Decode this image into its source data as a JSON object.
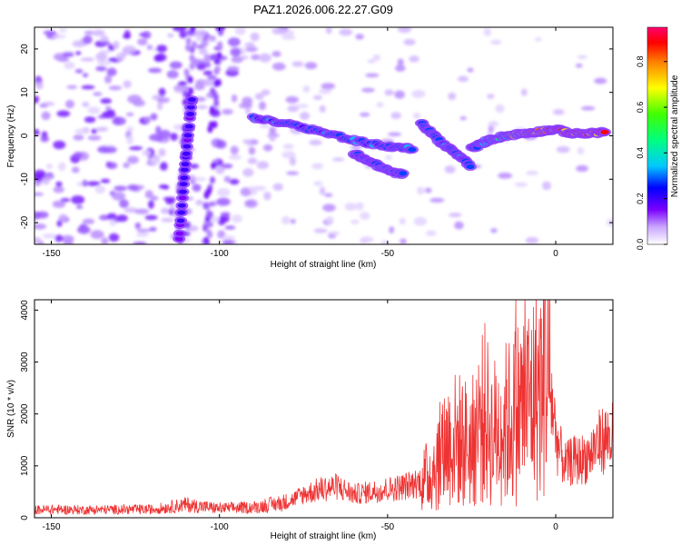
{
  "title": "PAZ1.2026.006.22.27.G09",
  "chart_data": [
    {
      "type": "heatmap",
      "xlabel": "Height of straight line (km)",
      "ylabel": "Frequency (Hz)",
      "xlim": [
        -155,
        17
      ],
      "ylim": [
        -25,
        25
      ],
      "x_ticks": [
        -150,
        -100,
        -50,
        0
      ],
      "x_tick_labels": [
        "-150",
        "-100",
        "-50",
        "0"
      ],
      "y_ticks": [
        -20,
        -10,
        0,
        10,
        20
      ],
      "y_tick_labels": [
        "-20",
        "-10",
        "0",
        "10",
        "20"
      ],
      "colorbar": {
        "label": "Normalized spectral amplitude",
        "range": [
          0,
          0.95
        ],
        "ticks": [
          0.0,
          0.2,
          0.4,
          0.6,
          0.8
        ],
        "tick_labels": [
          "0.0",
          "0.2",
          "0.4",
          "0.6",
          "0.8"
        ],
        "colormap": [
          "#ffffff",
          "#c9a6ff",
          "#7a00ff",
          "#0000ff",
          "#00c8ff",
          "#00ff80",
          "#40ff00",
          "#ffff00",
          "#ff8000",
          "#ff0000",
          "#ff0070"
        ]
      },
      "features": [
        {
          "x": [
            -90,
            -80,
            -70,
            -60,
            -50,
            -42
          ],
          "y": [
            4,
            3,
            1,
            -1,
            -2.5,
            -3
          ]
        },
        {
          "x": [
            -60,
            -55,
            -50,
            -45
          ],
          "y": [
            -4,
            -6,
            -8,
            -9
          ]
        },
        {
          "x": [
            -40,
            -35,
            -30,
            -25
          ],
          "y": [
            3,
            -1,
            -4,
            -7
          ]
        },
        {
          "x": [
            -25,
            -20,
            -15,
            -10,
            -5,
            0,
            5,
            10,
            15
          ],
          "y": [
            -3,
            -1,
            0,
            0.5,
            1,
            1.5,
            0.5,
            0.5,
            1
          ]
        },
        {
          "x": [
            -112,
            -110,
            -108
          ],
          "y": [
            -24,
            -5,
            10
          ]
        }
      ]
    },
    {
      "type": "line",
      "xlabel": "Height of straight line (km)",
      "ylabel": "SNR (10 * v/v)",
      "xlim": [
        -155,
        17
      ],
      "ylim": [
        0,
        4200
      ],
      "x_ticks": [
        -150,
        -100,
        -50,
        0
      ],
      "x_tick_labels": [
        "-150",
        "-100",
        "-50",
        "0"
      ],
      "y_ticks": [
        0,
        1000,
        2000,
        3000,
        4000
      ],
      "y_tick_labels": [
        "0",
        "1000",
        "2000",
        "3000",
        "4000"
      ],
      "color": "#ee3333",
      "x": [
        -155,
        -150,
        -140,
        -130,
        -120,
        -110,
        -100,
        -90,
        -80,
        -75,
        -70,
        -65,
        -60,
        -55,
        -50,
        -45,
        -40,
        -38,
        -35,
        -33,
        -31,
        -29,
        -27,
        -25,
        -23,
        -21,
        -19,
        -17,
        -15,
        -13,
        -11,
        -9,
        -7,
        -5,
        -4,
        -3,
        -2,
        -1,
        0,
        1,
        3,
        5,
        7,
        10,
        12,
        14,
        17
      ],
      "y": [
        150,
        160,
        150,
        160,
        160,
        250,
        180,
        200,
        300,
        450,
        550,
        600,
        450,
        500,
        550,
        600,
        700,
        800,
        1100,
        1400,
        1500,
        1500,
        1450,
        1400,
        1800,
        2000,
        1600,
        1750,
        1800,
        1900,
        2100,
        2200,
        2300,
        2500,
        2400,
        3200,
        2500,
        2200,
        1600,
        1300,
        1000,
        1100,
        1100,
        1200,
        1400,
        1500,
        1550
      ]
    }
  ]
}
